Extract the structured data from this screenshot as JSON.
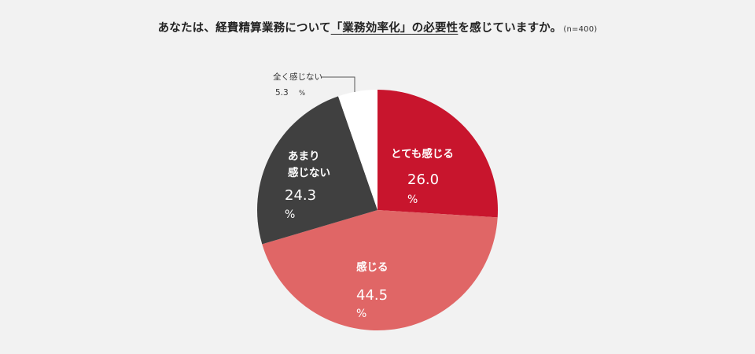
{
  "chart_data": {
    "type": "pie",
    "title": {
      "pre": "あなたは、経費精算業務について",
      "bracket_open": "「",
      "highlight": "業務効率化",
      "bracket_close": "」",
      "post_underlined": "の必要性",
      "post": "を感じていますか。",
      "sample": "(n=400)"
    },
    "unit": "%",
    "slices": [
      {
        "label": "とても感じる",
        "value": 26.0,
        "display": "26.0",
        "color": "#c8152d"
      },
      {
        "label": "感じる",
        "value": 44.5,
        "display": "44.5",
        "color": "#e06666"
      },
      {
        "label": "あまり感じない",
        "label_lines": [
          "あまり",
          "感じない"
        ],
        "value": 24.3,
        "display": "24.3",
        "color": "#404040"
      },
      {
        "label": "全く感じない",
        "value": 5.3,
        "display": "5.3",
        "color": "#ffffff"
      }
    ]
  }
}
